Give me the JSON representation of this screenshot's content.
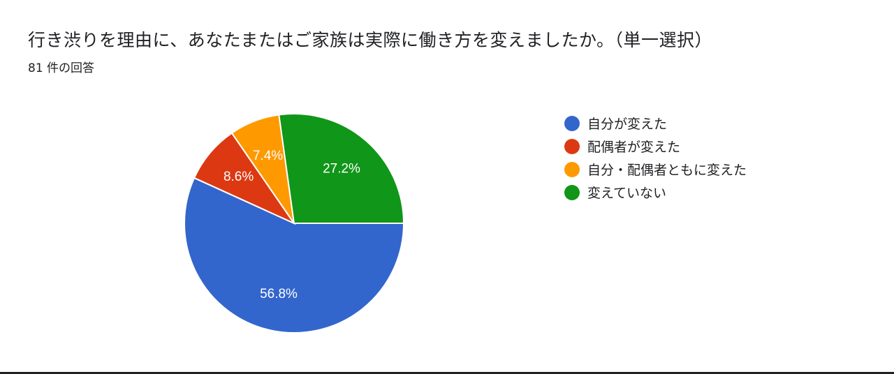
{
  "question": {
    "title": "行き渋りを理由に、あなたまたはご家族は実際に働き方を変えましたか。（単一選択）",
    "response_count": "81 件の回答"
  },
  "chart_data": {
    "type": "pie",
    "categories": [
      "自分が変えた",
      "配偶者が変えた",
      "自分・配偶者ともに変えた",
      "変えていない"
    ],
    "values": [
      56.8,
      8.6,
      7.4,
      27.2
    ],
    "labels": [
      "56.8%",
      "8.6%",
      "7.4%",
      "27.2%"
    ],
    "colors": [
      "#3366cc",
      "#dc3912",
      "#ff9900",
      "#109618"
    ],
    "legend_position": "right"
  }
}
